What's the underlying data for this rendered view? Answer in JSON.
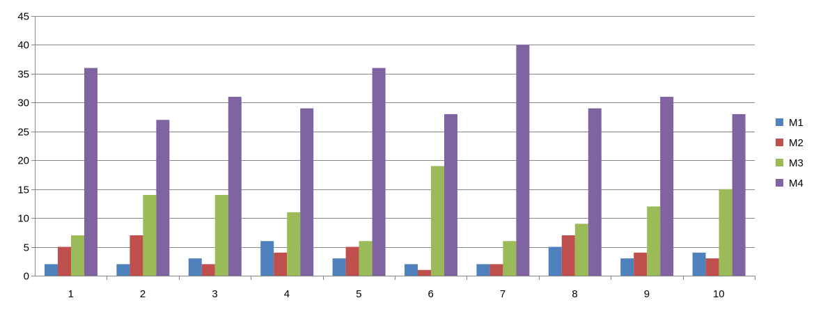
{
  "chart_data": {
    "type": "bar",
    "title": "",
    "xlabel": "",
    "ylabel": "",
    "categories": [
      "1",
      "2",
      "3",
      "4",
      "5",
      "6",
      "7",
      "8",
      "9",
      "10"
    ],
    "series": [
      {
        "name": "M1",
        "color": "#4F81BD",
        "values": [
          2,
          2,
          3,
          6,
          3,
          2,
          2,
          5,
          3,
          4
        ]
      },
      {
        "name": "M2",
        "color": "#C0504D",
        "values": [
          5,
          7,
          2,
          4,
          5,
          1,
          2,
          7,
          4,
          3
        ]
      },
      {
        "name": "M3",
        "color": "#9BBB59",
        "values": [
          7,
          14,
          14,
          11,
          6,
          19,
          6,
          9,
          12,
          15
        ]
      },
      {
        "name": "M4",
        "color": "#8064A2",
        "values": [
          36,
          27,
          31,
          29,
          36,
          28,
          40,
          29,
          31,
          28
        ]
      }
    ],
    "ylim": [
      0,
      45
    ],
    "yticks": [
      "0",
      "5",
      "10",
      "15",
      "20",
      "25",
      "30",
      "35",
      "40",
      "45"
    ],
    "grid": true,
    "legend": "right"
  }
}
